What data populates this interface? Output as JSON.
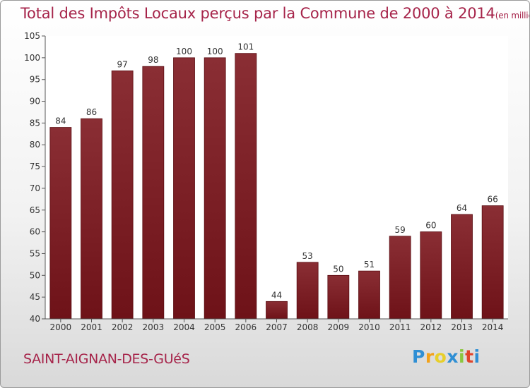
{
  "chart_data": {
    "type": "bar",
    "title": "Total des Impôts Locaux perçus par la Commune de 2000 à 2014",
    "unit": "(en milliers d'€)",
    "categories": [
      "2000",
      "2001",
      "2002",
      "2003",
      "2004",
      "2005",
      "2006",
      "2007",
      "2008",
      "2009",
      "2010",
      "2011",
      "2012",
      "2013",
      "2014"
    ],
    "values": [
      84,
      86,
      97,
      98,
      100,
      100,
      101,
      44,
      53,
      50,
      51,
      59,
      60,
      64,
      66
    ],
    "ylim": [
      40,
      105
    ],
    "yticks": [
      40,
      45,
      50,
      55,
      60,
      65,
      70,
      75,
      80,
      85,
      90,
      95,
      100,
      105
    ],
    "xlabel": "",
    "ylabel": "",
    "bar_color": "#6e1218",
    "grid": false
  },
  "footer": {
    "commune": "SAINT-AIGNAN-DES-GUéS"
  },
  "logo": {
    "letters": [
      "P",
      "r",
      "o",
      "x",
      "i",
      "t",
      "i"
    ]
  }
}
